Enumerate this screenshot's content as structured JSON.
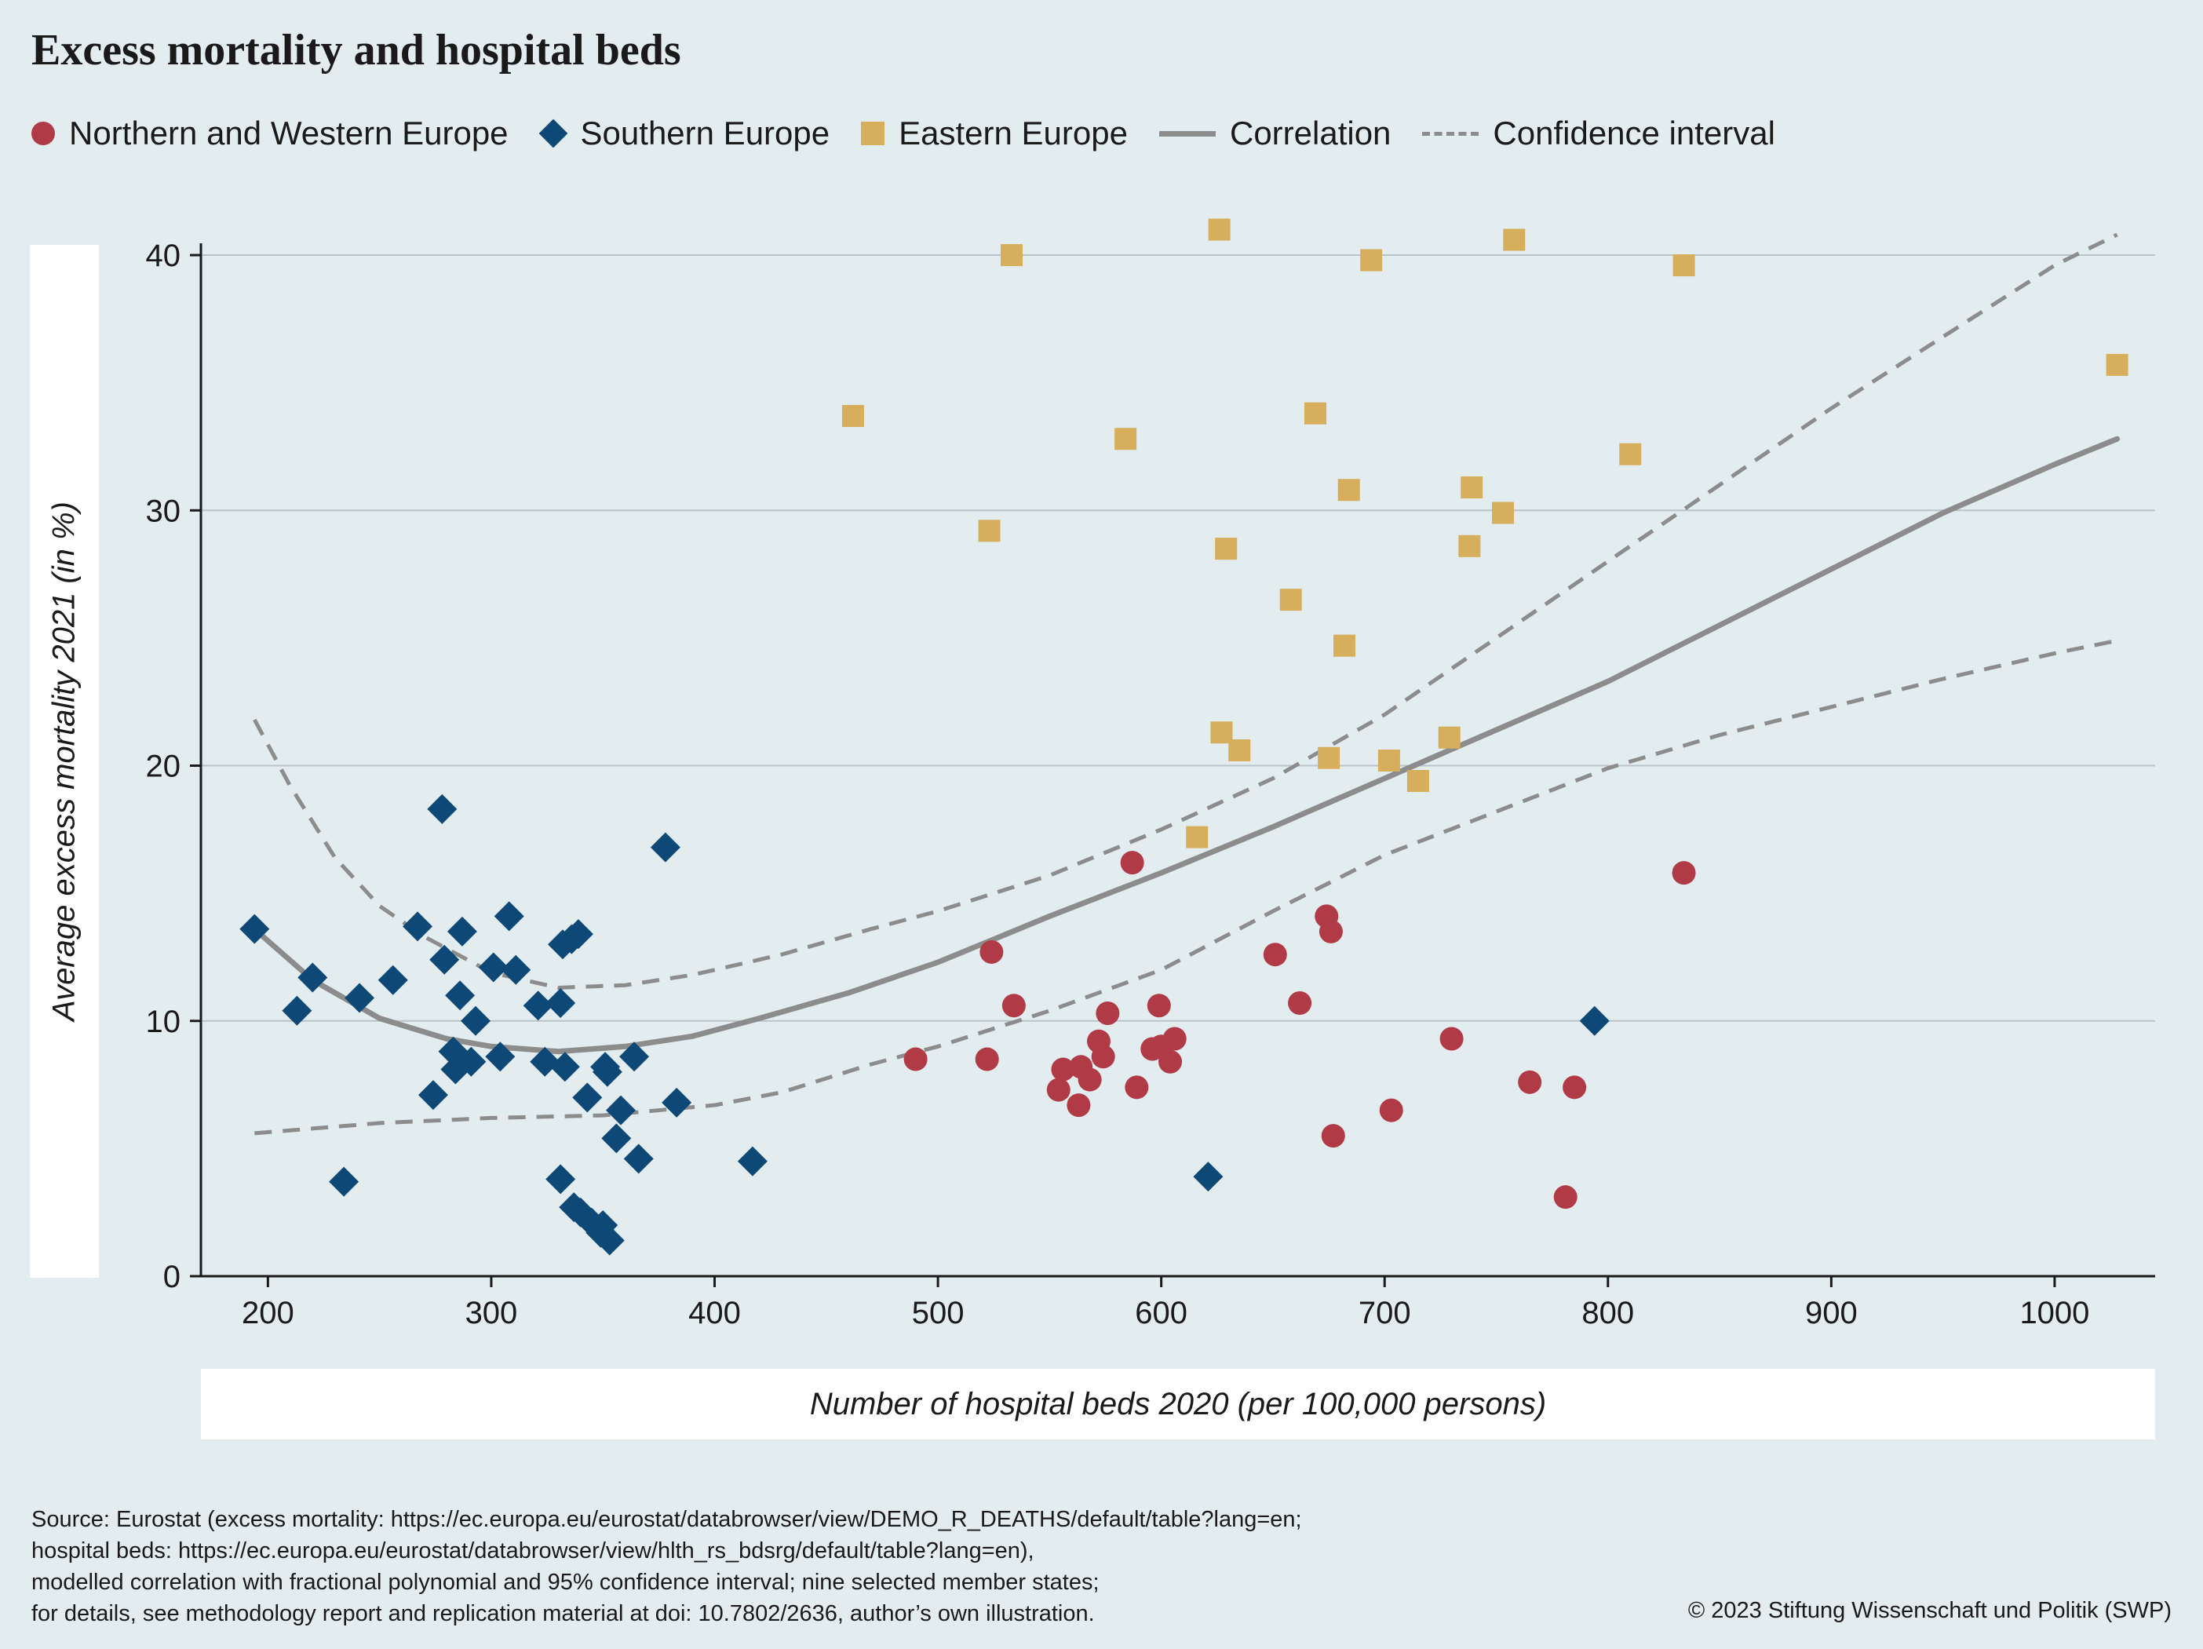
{
  "title": "Excess mortality and hospital beds",
  "legend": [
    {
      "label": "Northern and Western Europe",
      "shape": "circle",
      "color": "#b03a46"
    },
    {
      "label": "Southern Europe",
      "shape": "diamond",
      "color": "#0d4876"
    },
    {
      "label": "Eastern Europe",
      "shape": "square",
      "color": "#d6ae5c"
    },
    {
      "label": "Correlation",
      "shape": "line",
      "color": "#8c8c8c"
    },
    {
      "label": "Confidence interval",
      "shape": "dashed-line",
      "color": "#8c8c8c"
    }
  ],
  "source_lines": [
    "Source: Eurostat (excess mortality: https://ec.europa.eu/eurostat/databrowser/view/DEMO_R_DEATHS/default/table?lang=en;",
    "hospital beds: https://ec.europa.eu/eurostat/databrowser/view/hlth_rs_bdsrg/default/table?lang=en),",
    "modelled correlation with fractional polynomial and 95% confidence interval; nine selected member states;",
    "for details, see methodology report and replication material at doi: 10.7802/2636, author’s own illustration."
  ],
  "copyright": "© 2023 Stiftung Wissenschaft und Politik (SWP)",
  "chart_data": {
    "type": "scatter",
    "title": "Excess mortality and hospital beds",
    "xlabel": "Number of hospital beds 2020 (per 100,000 persons)",
    "ylabel": "Average excess mortality 2021 (in %)",
    "xlim": [
      170,
      1045
    ],
    "ylim": [
      0,
      42
    ],
    "xticks": [
      200,
      300,
      400,
      500,
      600,
      700,
      800,
      900,
      1000
    ],
    "yticks": [
      0,
      10,
      20,
      30,
      40
    ],
    "grid": "horizontal",
    "legend_position": "top",
    "series": [
      {
        "name": "Northern and Western Europe",
        "marker": "circle",
        "color": "#b03a46",
        "points": [
          [
            490,
            8.5
          ],
          [
            522,
            8.5
          ],
          [
            524,
            12.7
          ],
          [
            534,
            10.6
          ],
          [
            554,
            7.3
          ],
          [
            556,
            8.1
          ],
          [
            563,
            6.7
          ],
          [
            564,
            8.2
          ],
          [
            568,
            7.7
          ],
          [
            572,
            9.2
          ],
          [
            574,
            8.6
          ],
          [
            576,
            10.3
          ],
          [
            587,
            16.2
          ],
          [
            589,
            7.4
          ],
          [
            596,
            8.9
          ],
          [
            599,
            10.6
          ],
          [
            600,
            9.0
          ],
          [
            604,
            8.4
          ],
          [
            606,
            9.3
          ],
          [
            651,
            12.6
          ],
          [
            662,
            10.7
          ],
          [
            674,
            14.1
          ],
          [
            676,
            13.5
          ],
          [
            677,
            5.5
          ],
          [
            703,
            6.5
          ],
          [
            730,
            9.3
          ],
          [
            765,
            7.6
          ],
          [
            781,
            3.1
          ],
          [
            785,
            7.4
          ],
          [
            834,
            15.8
          ]
        ]
      },
      {
        "name": "Southern Europe",
        "marker": "diamond",
        "color": "#0d4876",
        "points": [
          [
            194,
            13.6
          ],
          [
            213,
            10.4
          ],
          [
            220,
            11.7
          ],
          [
            234,
            3.7
          ],
          [
            241,
            10.9
          ],
          [
            256,
            11.6
          ],
          [
            267,
            13.7
          ],
          [
            274,
            7.1
          ],
          [
            278,
            18.3
          ],
          [
            279,
            12.4
          ],
          [
            283,
            8.8
          ],
          [
            284,
            8.1
          ],
          [
            286,
            11.0
          ],
          [
            287,
            13.5
          ],
          [
            291,
            8.4
          ],
          [
            293,
            10.0
          ],
          [
            301,
            12.1
          ],
          [
            304,
            8.6
          ],
          [
            308,
            14.1
          ],
          [
            311,
            12.0
          ],
          [
            321,
            10.6
          ],
          [
            324,
            8.4
          ],
          [
            331,
            10.7
          ],
          [
            331,
            3.8
          ],
          [
            332,
            13.0
          ],
          [
            333,
            8.2
          ],
          [
            336,
            13.2
          ],
          [
            337,
            2.7
          ],
          [
            339,
            13.4
          ],
          [
            340,
            2.5
          ],
          [
            343,
            7.0
          ],
          [
            345,
            2.1
          ],
          [
            349,
            1.7
          ],
          [
            350,
            2.0
          ],
          [
            351,
            8.2
          ],
          [
            352,
            8.0
          ],
          [
            353,
            1.4
          ],
          [
            356,
            5.4
          ],
          [
            358,
            6.5
          ],
          [
            364,
            8.6
          ],
          [
            366,
            4.6
          ],
          [
            378,
            16.8
          ],
          [
            383,
            6.8
          ],
          [
            417,
            4.5
          ],
          [
            621,
            3.9
          ],
          [
            794,
            10.0
          ]
        ]
      },
      {
        "name": "Eastern Europe",
        "marker": "square",
        "color": "#d6ae5c",
        "points": [
          [
            462,
            33.7
          ],
          [
            523,
            29.2
          ],
          [
            533,
            40.0
          ],
          [
            584,
            32.8
          ],
          [
            616,
            17.2
          ],
          [
            626,
            41.0
          ],
          [
            627,
            21.3
          ],
          [
            629,
            28.5
          ],
          [
            635,
            20.6
          ],
          [
            658,
            26.5
          ],
          [
            669,
            33.8
          ],
          [
            675,
            20.3
          ],
          [
            682,
            24.7
          ],
          [
            684,
            30.8
          ],
          [
            694,
            39.8
          ],
          [
            702,
            20.2
          ],
          [
            715,
            19.4
          ],
          [
            729,
            21.1
          ],
          [
            738,
            28.6
          ],
          [
            739,
            30.9
          ],
          [
            753,
            29.9
          ],
          [
            758,
            40.6
          ],
          [
            810,
            32.2
          ],
          [
            834,
            39.6
          ],
          [
            1028,
            35.7
          ]
        ]
      },
      {
        "name": "Correlation",
        "marker": "line",
        "color": "#8c8c8c",
        "points": [
          [
            194,
            13.6
          ],
          [
            220,
            11.6
          ],
          [
            250,
            10.1
          ],
          [
            280,
            9.3
          ],
          [
            300,
            9.0
          ],
          [
            330,
            8.8
          ],
          [
            360,
            9.0
          ],
          [
            390,
            9.4
          ],
          [
            420,
            10.1
          ],
          [
            460,
            11.1
          ],
          [
            500,
            12.3
          ],
          [
            550,
            14.1
          ],
          [
            600,
            15.8
          ],
          [
            650,
            17.6
          ],
          [
            700,
            19.5
          ],
          [
            750,
            21.4
          ],
          [
            800,
            23.3
          ],
          [
            850,
            25.5
          ],
          [
            900,
            27.7
          ],
          [
            950,
            29.9
          ],
          [
            1000,
            31.8
          ],
          [
            1028,
            32.8
          ]
        ]
      },
      {
        "name": "Confidence interval",
        "marker": "dashed-line",
        "color": "#8c8c8c",
        "upper": [
          [
            194,
            21.8
          ],
          [
            210,
            19.2
          ],
          [
            230,
            16.4
          ],
          [
            250,
            14.5
          ],
          [
            270,
            13.3
          ],
          [
            300,
            11.9
          ],
          [
            330,
            11.3
          ],
          [
            360,
            11.4
          ],
          [
            390,
            11.8
          ],
          [
            430,
            12.6
          ],
          [
            470,
            13.6
          ],
          [
            500,
            14.3
          ],
          [
            550,
            15.7
          ],
          [
            600,
            17.5
          ],
          [
            650,
            19.5
          ],
          [
            700,
            22.0
          ],
          [
            750,
            25.0
          ],
          [
            800,
            28.0
          ],
          [
            850,
            31.0
          ],
          [
            900,
            34.0
          ],
          [
            950,
            36.8
          ],
          [
            1000,
            39.6
          ],
          [
            1028,
            40.8
          ]
        ],
        "lower": [
          [
            194,
            5.6
          ],
          [
            250,
            6.0
          ],
          [
            300,
            6.2
          ],
          [
            350,
            6.3
          ],
          [
            400,
            6.7
          ],
          [
            430,
            7.2
          ],
          [
            470,
            8.3
          ],
          [
            500,
            9.0
          ],
          [
            550,
            10.4
          ],
          [
            600,
            12.0
          ],
          [
            650,
            14.3
          ],
          [
            700,
            16.5
          ],
          [
            750,
            18.2
          ],
          [
            800,
            19.9
          ],
          [
            850,
            21.2
          ],
          [
            900,
            22.3
          ],
          [
            950,
            23.4
          ],
          [
            1000,
            24.4
          ],
          [
            1028,
            24.9
          ]
        ]
      }
    ]
  }
}
